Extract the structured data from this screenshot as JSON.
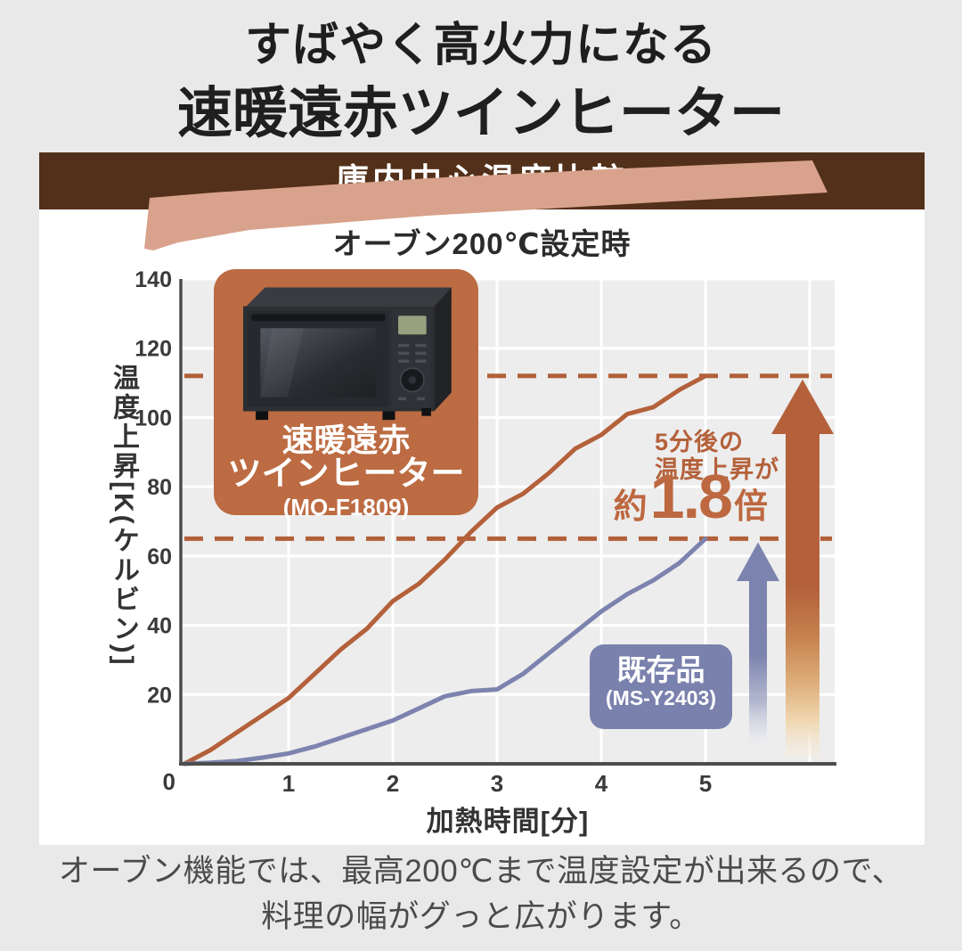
{
  "colors": {
    "page_background": "#e9e9e9",
    "banner_brown": "#533019",
    "highlight_brush": "#d9a28c",
    "accent_orange": "#bc6b42",
    "line_orange": "#b4613b",
    "line_blue": "#7c83ae",
    "dashed_reference": "#b2603a",
    "plot_background": "#ededed",
    "axis_color": "#4d4d4d"
  },
  "header": {
    "title_line1": "すばやく高火力になる",
    "title_line2": "速暖遠赤ツインヒーター"
  },
  "panel": {
    "banner": "庫内中心温度比較",
    "subtitle": "オーブン200℃設定時"
  },
  "chart_data": {
    "type": "line",
    "title": "庫内中心温度比較",
    "subtitle": "オーブン200℃設定時",
    "xlabel": "加熱時間[分]",
    "ylabel": "温度上昇[K(ケルビン)]",
    "x": [
      0,
      0.25,
      0.5,
      0.75,
      1,
      1.25,
      1.5,
      1.75,
      2,
      2.25,
      2.5,
      2.75,
      3,
      3.25,
      3.5,
      3.75,
      4,
      4.25,
      4.5,
      4.75,
      5
    ],
    "series": [
      {
        "name": "速暖遠赤ツインヒーター",
        "model": "MO-F1809",
        "color": "#b4613b",
        "values": [
          0,
          4,
          9,
          14,
          19,
          26,
          33,
          39,
          47,
          52,
          59,
          67,
          74,
          78,
          84,
          91,
          95,
          101,
          103,
          108,
          112
        ]
      },
      {
        "name": "既存品",
        "model": "MS-Y2403",
        "color": "#7c83ae",
        "values": [
          0,
          0.3,
          0.8,
          1.8,
          3,
          5,
          7.5,
          10,
          12.5,
          16,
          19.5,
          21,
          21.5,
          26,
          32,
          38,
          44,
          49,
          53,
          58,
          65
        ]
      }
    ],
    "xticks": [
      0,
      1,
      2,
      3,
      4,
      5
    ],
    "yticks": [
      20,
      40,
      60,
      80,
      100,
      120,
      140
    ],
    "xlim": [
      0,
      6.25
    ],
    "ylim": [
      0,
      140
    ],
    "grid": true,
    "legend_position": "on-chart-label-boxes",
    "reference_lines": {
      "top": 112,
      "bottom": 65
    }
  },
  "product_label": {
    "line1": "速暖遠赤",
    "line2": "ツインヒーター",
    "model": "(MO-F1809)"
  },
  "existing_label": {
    "name": "既存品",
    "model": "(MS-Y2403)"
  },
  "annotation": {
    "line1": "5分後の",
    "line2": "温度上昇が",
    "prefix": "約",
    "value": "1.8",
    "suffix": "倍"
  },
  "axis": {
    "xlabel": "加熱時間[分]",
    "ylabel": "温度上昇[K(ケルビン)]"
  },
  "footer": {
    "line1": "オーブン機能では、最高200℃まで温度設定が出来るので、",
    "line2": "料理の幅がグっと広がります。"
  }
}
